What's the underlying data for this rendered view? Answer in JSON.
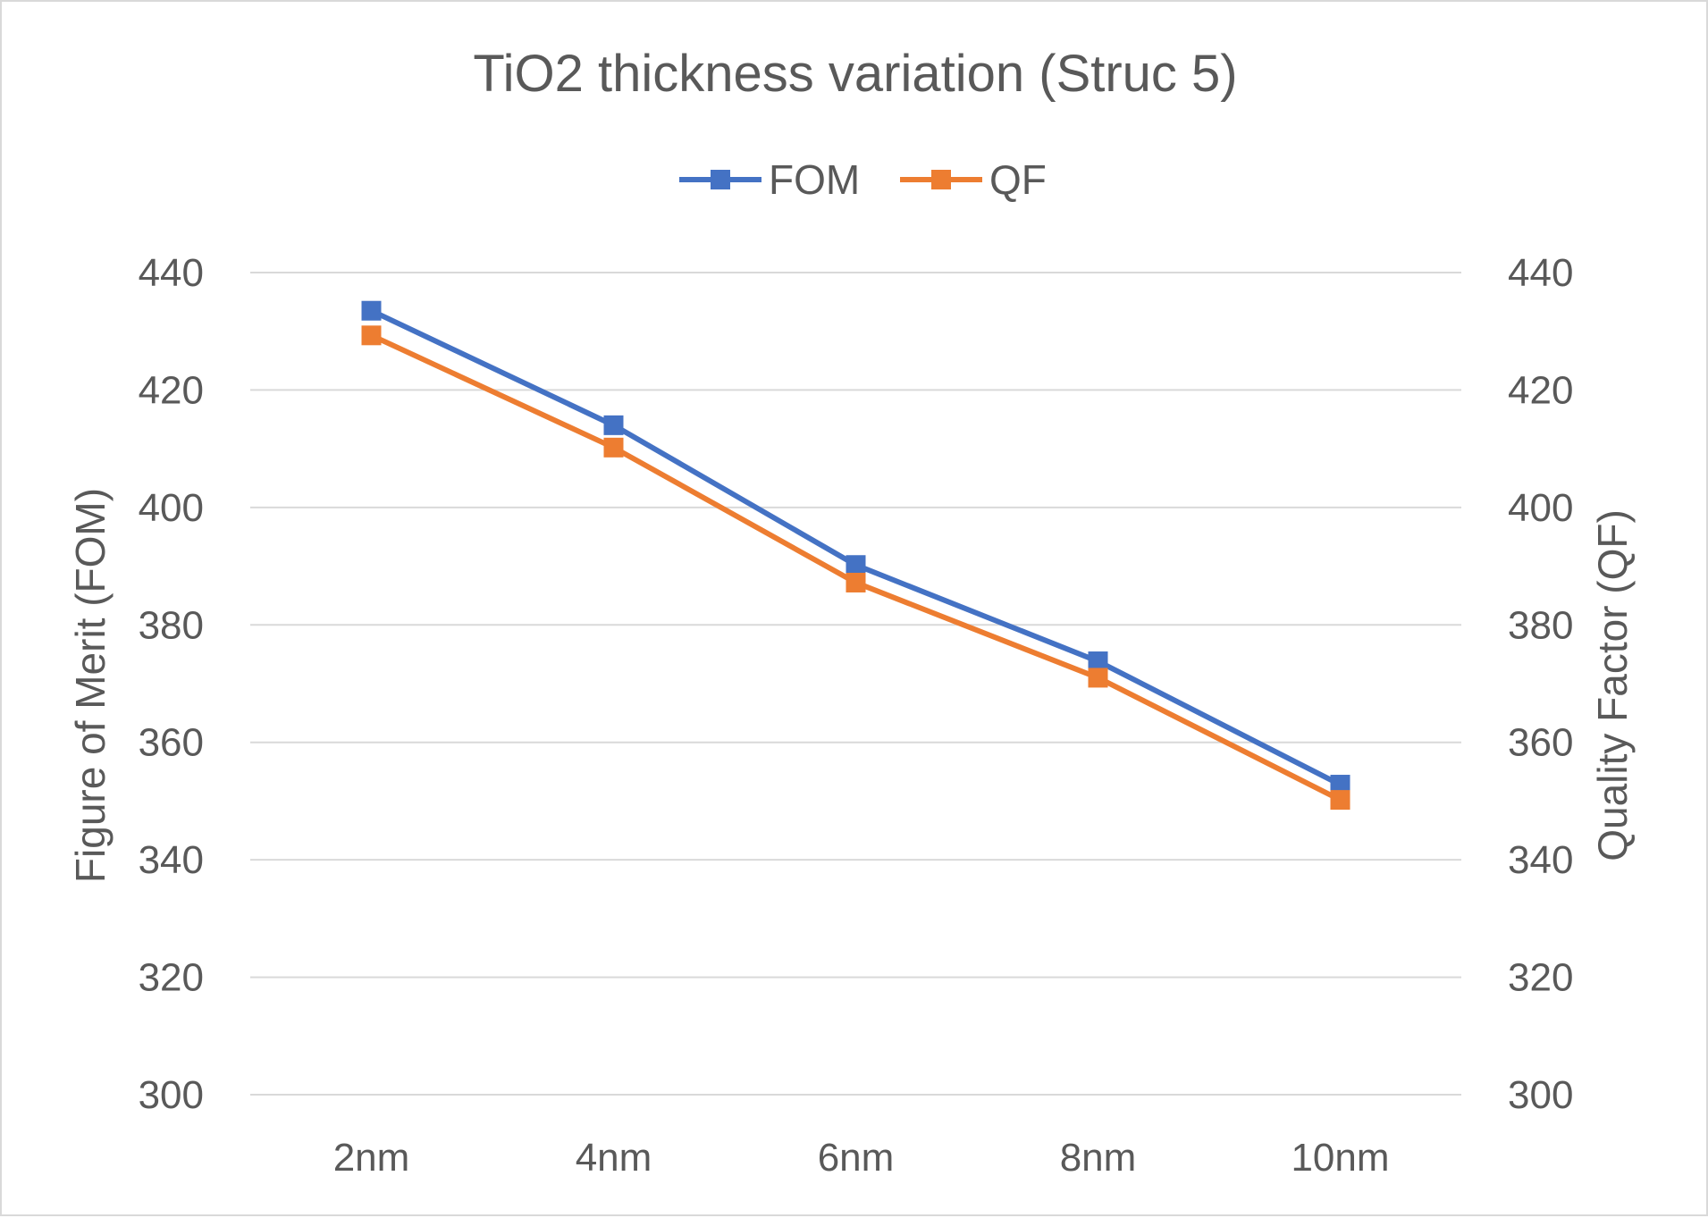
{
  "chart_data": {
    "type": "line",
    "title": "TiO2 thickness variation (Struc 5)",
    "categories": [
      "2nm",
      "4nm",
      "6nm",
      "8nm",
      "10nm"
    ],
    "series": [
      {
        "name": "FOM",
        "axis": "left",
        "color": "#4472C4",
        "values": [
          433.5,
          414.0,
          390.2,
          373.8,
          352.8
        ]
      },
      {
        "name": "QF",
        "axis": "right",
        "color": "#ED7D31",
        "values": [
          429.3,
          410.2,
          387.2,
          371.0,
          350.2
        ]
      }
    ],
    "ylabel": "Figure of Merit (FOM)",
    "y2label": "Quality Factor (QF)",
    "ylim": [
      300,
      440
    ],
    "y2lim": [
      300,
      440
    ],
    "yticks": [
      "300",
      "320",
      "340",
      "360",
      "380",
      "400",
      "420",
      "440"
    ],
    "y2ticks": [
      "300",
      "320",
      "340",
      "360",
      "380",
      "400",
      "420",
      "440"
    ],
    "grid": true,
    "legend": "top-center",
    "gridline_color": "#d9d9d9"
  }
}
